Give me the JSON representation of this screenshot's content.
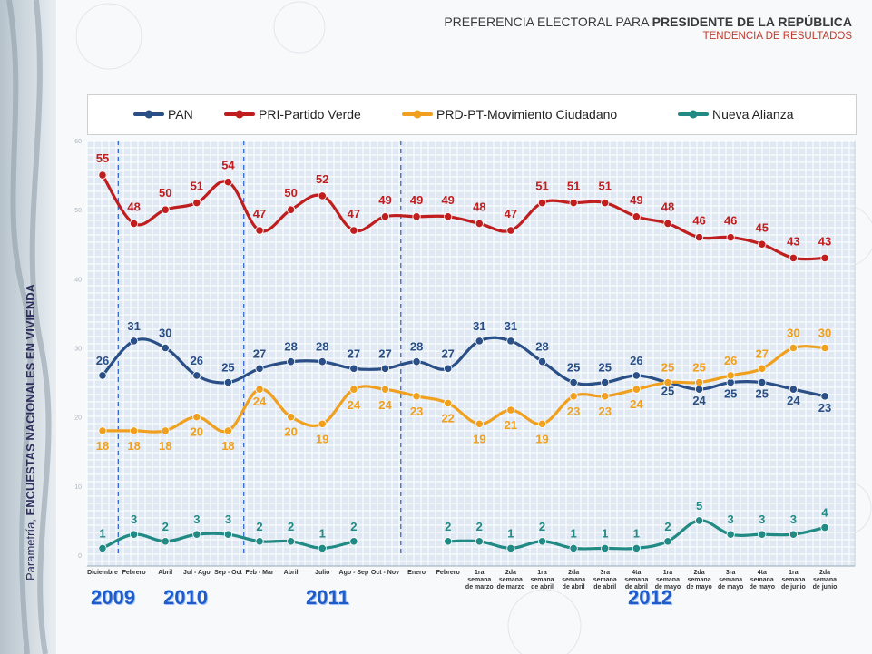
{
  "header": {
    "title_prefix": "PREFERENCIA ELECTORAL PARA ",
    "title_bold": "PRESIDENTE DE LA REPÚBLICA",
    "subtitle": "TENDENCIA DE RESULTADOS"
  },
  "side_label": {
    "prefix": "Parametría, ",
    "bold": "ENCUESTAS NACIONALES EN VIVIENDA"
  },
  "years": [
    "2009",
    "2010",
    "2011",
    "2012"
  ],
  "colors": {
    "PAN": "#2a4f86",
    "PRI": "#c01e1e",
    "PRD": "#f0a01e",
    "NA": "#218a84"
  },
  "chart_data": {
    "type": "line",
    "categories": [
      [
        "Diciembre"
      ],
      [
        "Febrero"
      ],
      [
        "Abril"
      ],
      [
        "Jul - Ago"
      ],
      [
        "Sep - Oct"
      ],
      [
        "Feb - Mar"
      ],
      [
        "Abril"
      ],
      [
        "Julio"
      ],
      [
        "Ago - Sep"
      ],
      [
        "Oct - Nov"
      ],
      [
        "Enero"
      ],
      [
        "Febrero"
      ],
      [
        "1ra",
        "semana",
        "de marzo"
      ],
      [
        "2da",
        "semana",
        "de marzo"
      ],
      [
        "1ra",
        "semana",
        "de abril"
      ],
      [
        "2da",
        "semana",
        "de abril"
      ],
      [
        "3ra",
        "semana",
        "de abril"
      ],
      [
        "4ta",
        "semana",
        "de abril"
      ],
      [
        "1ra",
        "semana",
        "de mayo"
      ],
      [
        "2da",
        "semana",
        "de mayo"
      ],
      [
        "3ra",
        "semana",
        "de mayo"
      ],
      [
        "4ta",
        "semana",
        "de mayo"
      ],
      [
        "1ra",
        "semana",
        "de junio"
      ],
      [
        "2da",
        "semana",
        "de junio"
      ]
    ],
    "ylim": [
      0,
      60
    ],
    "y_ticks": [
      0,
      10,
      20,
      30,
      40,
      50,
      60
    ],
    "grid": true,
    "legend_position": "top",
    "series": [
      {
        "key": "PAN",
        "name": "PAN",
        "values": [
          26,
          31,
          30,
          26,
          25,
          27,
          28,
          28,
          27,
          27,
          28,
          27,
          31,
          31,
          28,
          25,
          25,
          26,
          25,
          24,
          25,
          25,
          24,
          23
        ]
      },
      {
        "key": "PRI",
        "name": "PRI-Partido Verde",
        "values": [
          55,
          48,
          50,
          51,
          54,
          47,
          50,
          52,
          47,
          49,
          49,
          49,
          48,
          47,
          51,
          51,
          51,
          49,
          48,
          46,
          46,
          45,
          43,
          43
        ]
      },
      {
        "key": "PRD",
        "name": "PRD-PT-Movimiento Ciudadano",
        "values": [
          18,
          18,
          18,
          20,
          18,
          24,
          20,
          19,
          24,
          24,
          23,
          22,
          19,
          21,
          19,
          23,
          23,
          24,
          25,
          25,
          26,
          27,
          30,
          30
        ]
      },
      {
        "key": "NA",
        "name": "Nueva Alianza",
        "values": [
          1,
          3,
          2,
          3,
          3,
          2,
          2,
          1,
          2,
          null,
          null,
          2,
          2,
          1,
          2,
          1,
          1,
          1,
          2,
          5,
          3,
          3,
          3,
          4
        ]
      }
    ]
  }
}
